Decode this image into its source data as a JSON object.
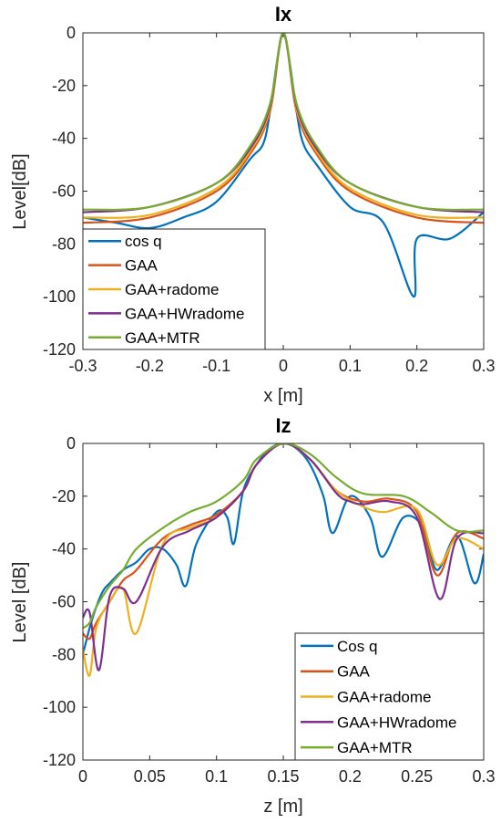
{
  "colors": {
    "blue": "#0072BD",
    "orange": "#D95319",
    "yellow": "#EDB120",
    "purple": "#7E2F8E",
    "green": "#77AC30"
  },
  "chart_data": [
    {
      "type": "line",
      "title": "Ix",
      "xlabel": "x [m]",
      "ylabel": "Level[dB]",
      "xlim": [
        -0.3,
        0.3
      ],
      "ylim": [
        -120,
        0
      ],
      "xticks": [
        -0.3,
        -0.2,
        -0.1,
        0,
        0.1,
        0.2,
        0.3
      ],
      "xtick_labels": [
        "-0.3",
        "-0.2",
        "-0.1",
        "0",
        "0.1",
        "0.2",
        "0.3"
      ],
      "yticks": [
        0,
        -20,
        -40,
        -60,
        -80,
        -100,
        -120
      ],
      "ytick_labels": [
        "0",
        "-20",
        "-40",
        "-60",
        "-80",
        "-100",
        "-120"
      ],
      "legend_position": "bottom-left",
      "series": [
        {
          "name": "cos q",
          "color": "#0072BD",
          "x": [
            -0.3,
            -0.25,
            -0.2,
            -0.15,
            -0.1,
            -0.05,
            -0.03,
            -0.02,
            -0.01,
            0,
            0.01,
            0.02,
            0.03,
            0.05,
            0.1,
            0.15,
            0.195,
            0.2,
            0.25,
            0.3
          ],
          "y": [
            -70,
            -72,
            -74,
            -70,
            -64,
            -48,
            -42,
            -30,
            -12,
            0,
            -12,
            -30,
            -42,
            -50,
            -66,
            -72,
            -100,
            -78,
            -78,
            -68
          ]
        },
        {
          "name": "GAA",
          "color": "#D95319",
          "x": [
            -0.3,
            -0.2,
            -0.1,
            -0.05,
            -0.02,
            0,
            0.02,
            0.05,
            0.1,
            0.2,
            0.3
          ],
          "y": [
            -72,
            -70,
            -60,
            -46,
            -30,
            0,
            -30,
            -46,
            -60,
            -70,
            -72
          ]
        },
        {
          "name": "GAA+radome",
          "color": "#EDB120",
          "x": [
            -0.3,
            -0.2,
            -0.1,
            -0.05,
            -0.02,
            0,
            0.02,
            0.05,
            0.1,
            0.2,
            0.3
          ],
          "y": [
            -70,
            -69,
            -59,
            -45,
            -29,
            0,
            -29,
            -45,
            -59,
            -69,
            -70
          ]
        },
        {
          "name": "GAA+HWradome",
          "color": "#7E2F8E",
          "x": [
            -0.3,
            -0.2,
            -0.1,
            -0.05,
            -0.02,
            0,
            0.02,
            0.05,
            0.1,
            0.2,
            0.3
          ],
          "y": [
            -68,
            -66,
            -57,
            -44,
            -28,
            0,
            -28,
            -44,
            -57,
            -66,
            -68
          ]
        },
        {
          "name": "GAA+MTR",
          "color": "#77AC30",
          "x": [
            -0.3,
            -0.2,
            -0.1,
            -0.05,
            -0.02,
            0,
            0.02,
            0.05,
            0.1,
            0.2,
            0.3
          ],
          "y": [
            -67,
            -66,
            -57,
            -43,
            -27,
            0,
            -27,
            -43,
            -57,
            -66,
            -67
          ]
        }
      ]
    },
    {
      "type": "line",
      "title": "Iz",
      "xlabel": "z [m]",
      "ylabel": "Level [dB]",
      "xlim": [
        0,
        0.3
      ],
      "ylim": [
        -120,
        0
      ],
      "xticks": [
        0,
        0.05,
        0.1,
        0.15,
        0.2,
        0.25,
        0.3
      ],
      "xtick_labels": [
        "0",
        "0.05",
        "0.1",
        "0.15",
        "0.2",
        "0.25",
        "0.3"
      ],
      "yticks": [
        0,
        -20,
        -40,
        -60,
        -80,
        -100,
        -120
      ],
      "ytick_labels": [
        "0",
        "-20",
        "-40",
        "-60",
        "-80",
        "-100",
        "-120"
      ],
      "legend_position": "bottom-right",
      "series": [
        {
          "name": "Cos q",
          "color": "#0072BD",
          "x": [
            0.0,
            0.005,
            0.01,
            0.015,
            0.02,
            0.03,
            0.04,
            0.05,
            0.06,
            0.07,
            0.077,
            0.085,
            0.1,
            0.108,
            0.113,
            0.12,
            0.13,
            0.14,
            0.15,
            0.16,
            0.17,
            0.18,
            0.187,
            0.2,
            0.215,
            0.224,
            0.24,
            0.255,
            0.265,
            0.28,
            0.293,
            0.3
          ],
          "y": [
            -80,
            -70,
            -62,
            -56,
            -53,
            -48,
            -45,
            -40,
            -40,
            -46,
            -54,
            -38,
            -26,
            -28,
            -38,
            -18,
            -8,
            -2,
            0,
            -2,
            -8,
            -20,
            -34,
            -20,
            -28,
            -43,
            -28,
            -32,
            -48,
            -35,
            -53,
            -42
          ]
        },
        {
          "name": "GAA",
          "color": "#D95319",
          "x": [
            0.0,
            0.005,
            0.01,
            0.02,
            0.03,
            0.04,
            0.06,
            0.08,
            0.1,
            0.12,
            0.13,
            0.15,
            0.17,
            0.19,
            0.21,
            0.23,
            0.25,
            0.265,
            0.28,
            0.3
          ],
          "y": [
            -72,
            -74,
            -68,
            -60,
            -52,
            -48,
            -36,
            -31,
            -27,
            -18,
            -8,
            0,
            -6,
            -18,
            -22,
            -21,
            -26,
            -50,
            -34,
            -36
          ]
        },
        {
          "name": "GAA+radome",
          "color": "#EDB120",
          "x": [
            0.0,
            0.005,
            0.01,
            0.02,
            0.03,
            0.04,
            0.06,
            0.08,
            0.1,
            0.12,
            0.13,
            0.15,
            0.17,
            0.19,
            0.21,
            0.225,
            0.25,
            0.265,
            0.28,
            0.3
          ],
          "y": [
            -78,
            -88,
            -70,
            -60,
            -55,
            -72,
            -38,
            -32,
            -28,
            -18,
            -8,
            0,
            -6,
            -18,
            -24,
            -26,
            -25,
            -46,
            -36,
            -40
          ]
        },
        {
          "name": "GAA+HWradome",
          "color": "#7E2F8E",
          "x": [
            0.0,
            0.005,
            0.012,
            0.02,
            0.03,
            0.04,
            0.06,
            0.08,
            0.1,
            0.12,
            0.13,
            0.15,
            0.17,
            0.19,
            0.2,
            0.21,
            0.23,
            0.25,
            0.267,
            0.28,
            0.3
          ],
          "y": [
            -66,
            -64,
            -86,
            -58,
            -55,
            -60,
            -39,
            -33,
            -28,
            -18,
            -8,
            0,
            -6,
            -19,
            -22,
            -23,
            -22,
            -28,
            -59,
            -36,
            -34
          ]
        },
        {
          "name": "GAA+MTR",
          "color": "#77AC30",
          "x": [
            0.0,
            0.005,
            0.01,
            0.02,
            0.03,
            0.04,
            0.06,
            0.08,
            0.1,
            0.12,
            0.13,
            0.15,
            0.17,
            0.19,
            0.21,
            0.24,
            0.26,
            0.28,
            0.3
          ],
          "y": [
            -70,
            -68,
            -62,
            -54,
            -48,
            -40,
            -32,
            -26,
            -22,
            -14,
            -6,
            0,
            -4,
            -13,
            -19,
            -20,
            -26,
            -33,
            -33
          ]
        }
      ]
    }
  ]
}
